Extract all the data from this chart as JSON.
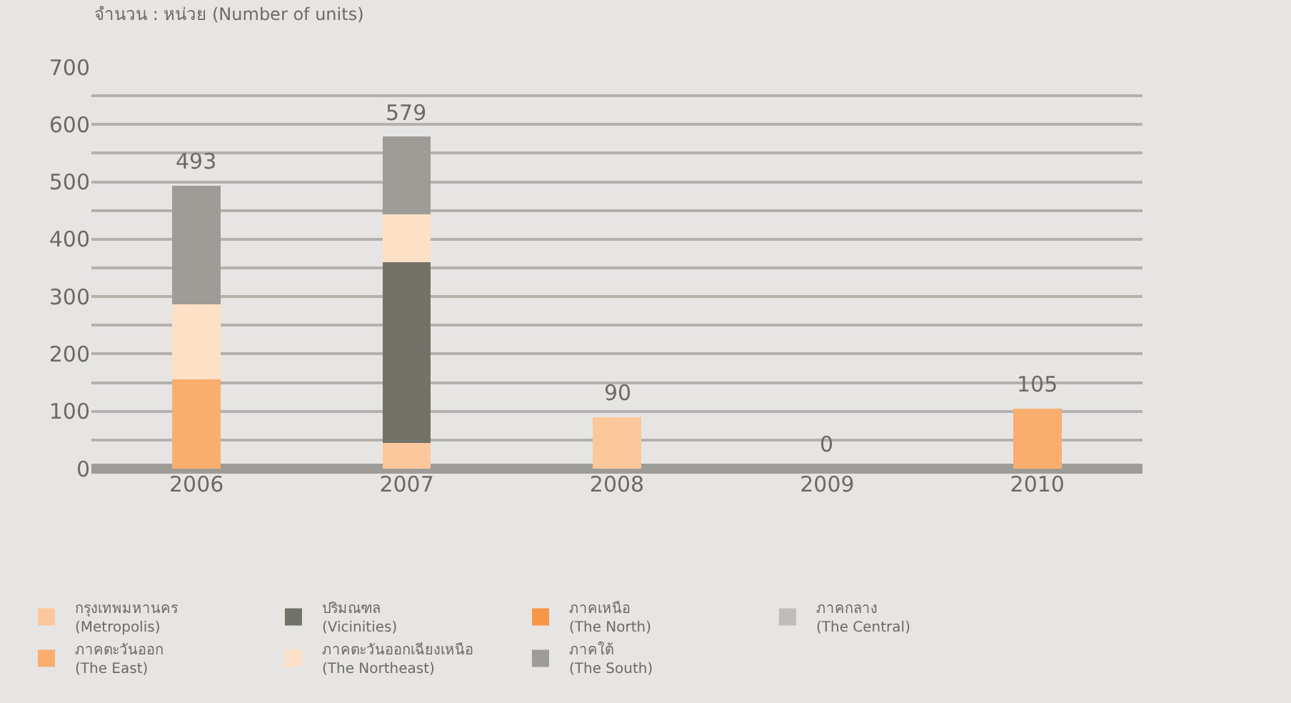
{
  "chart_data": {
    "type": "bar",
    "stacked": true,
    "ylabel": "จำนวน : หน่วย (Number of units)",
    "categories": [
      "2006",
      "2007",
      "2008",
      "2009",
      "2010"
    ],
    "series": [
      {
        "name": "กรุงเทพมหานคร\n(Metropolis)",
        "color": "#fcc79a",
        "values": [
          null,
          45,
          90,
          null,
          null
        ]
      },
      {
        "name": "ปริมณฑล\n(Vicinities)",
        "color": "#737268",
        "values": [
          null,
          315,
          null,
          null,
          null
        ]
      },
      {
        "name": "ภาคเหนือ\n(The North)",
        "color": "#f79646",
        "values": [
          null,
          null,
          null,
          null,
          null
        ]
      },
      {
        "name": "ภาคกลาง\n(The Central)",
        "color": "#bfbdb8",
        "values": [
          null,
          null,
          null,
          null,
          null
        ]
      },
      {
        "name": "ภาคตะวันออก\n(The East)",
        "color": "#f9ae6e",
        "values": [
          156,
          null,
          null,
          null,
          105
        ]
      },
      {
        "name": "ภาคตะวันออกเฉียงเหนือ\n(The Northeast)",
        "color": "#fde0c6",
        "values": [
          130,
          84,
          null,
          null,
          null
        ]
      },
      {
        "name": "ภาคใต้\n(The South)",
        "color": "#9e9c96",
        "values": [
          207,
          135,
          null,
          null,
          null
        ]
      }
    ],
    "totals": [
      "493",
      "579",
      "90",
      "0",
      "105"
    ],
    "ylim": [
      0,
      700
    ],
    "yticks": [
      0,
      {
        "value": 50,
        "label": null
      },
      100,
      {
        "value": 150,
        "label": null
      },
      200,
      {
        "value": 250,
        "label": null
      },
      300,
      {
        "value": 350,
        "label": null
      },
      400,
      {
        "value": 450,
        "label": null
      },
      500,
      {
        "value": 550,
        "label": null
      },
      600,
      {
        "value": 650,
        "label": null
      },
      700
    ],
    "grid": "y",
    "legend": "bottom"
  }
}
